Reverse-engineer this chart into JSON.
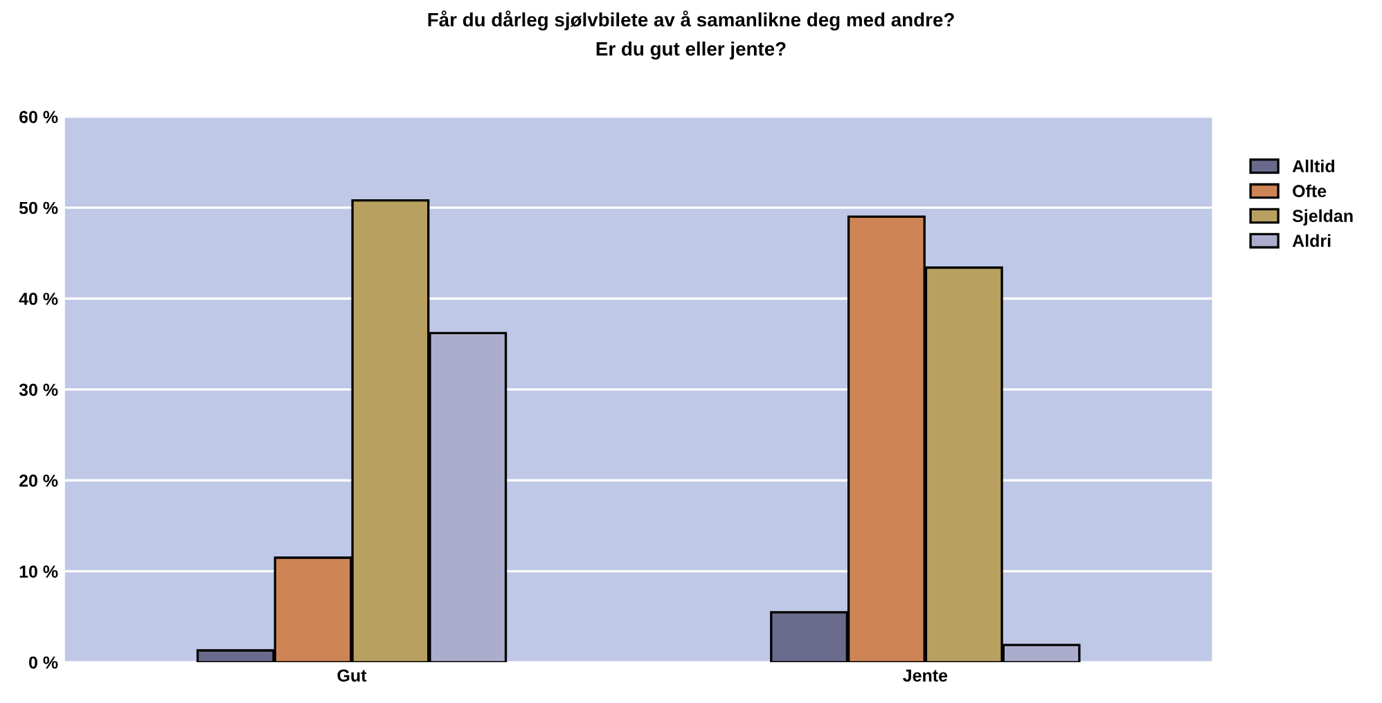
{
  "chart_data": {
    "type": "bar",
    "title": "Får du dårleg sjølvbilete av å samanlikne deg med andre?\nEr du gut eller jente?",
    "categories": [
      "Gut",
      "Jente"
    ],
    "series": [
      {
        "name": "Alltid",
        "color": "#6a6b8c",
        "values": [
          1.3,
          5.5
        ]
      },
      {
        "name": "Ofte",
        "color": "#cf8456",
        "values": [
          11.5,
          49.0
        ]
      },
      {
        "name": "Sjeldan",
        "color": "#b8a060",
        "values": [
          50.8,
          43.4
        ]
      },
      {
        "name": "Aldri",
        "color": "#acadcc",
        "values": [
          36.2,
          1.9
        ]
      }
    ],
    "ylim": [
      0,
      60
    ],
    "yticks": [
      {
        "value": 0,
        "label": "0 %"
      },
      {
        "value": 10,
        "label": "10 %"
      },
      {
        "value": 20,
        "label": "20 %"
      },
      {
        "value": 30,
        "label": "30 %"
      },
      {
        "value": 40,
        "label": "40 %"
      },
      {
        "value": 50,
        "label": "50 %"
      },
      {
        "value": 60,
        "label": "60 %"
      }
    ],
    "grid": "y",
    "legend": "top right"
  }
}
